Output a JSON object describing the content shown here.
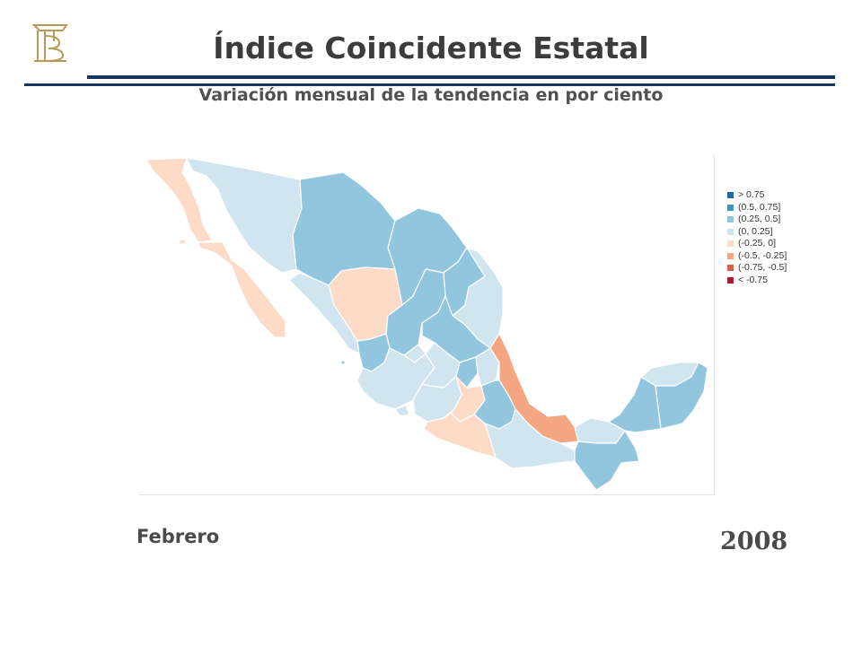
{
  "header": {
    "title": "Índice Coincidente Estatal",
    "subtitle": "Variación mensual de la tendencia en por ciento",
    "accent_color": "#17365d"
  },
  "legend": {
    "items": [
      {
        "label": "> 0.75",
        "color": "#2166ac"
      },
      {
        "label": "(0.5, 0.75]",
        "color": "#4393c3"
      },
      {
        "label": "(0.25, 0.5]",
        "color": "#92c5de"
      },
      {
        "label": "(0, 0.25]",
        "color": "#d1e5f0"
      },
      {
        "label": "(-0.25, 0]",
        "color": "#fddbc7"
      },
      {
        "label": "(-0.5, -0.25]",
        "color": "#f4a582"
      },
      {
        "label": "(-0.75, -0.5]",
        "color": "#d6604d"
      },
      {
        "label": "< -0.75",
        "color": "#b2182b"
      }
    ]
  },
  "footer": {
    "month": "Febrero",
    "year": "2008"
  }
}
